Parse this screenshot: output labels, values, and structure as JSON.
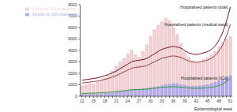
{
  "chart_data": {
    "type": "bar",
    "x_label": "Epidemiological week",
    "categories": [
      "12",
      null,
      null,
      "15",
      null,
      null,
      "18",
      null,
      null,
      "21",
      null,
      null,
      "24",
      null,
      null,
      "27",
      null,
      null,
      "30",
      null,
      null,
      "33",
      null,
      null,
      "36",
      null,
      null,
      "39",
      null,
      null,
      "42",
      null,
      null,
      "45",
      null,
      null,
      "48",
      null,
      null,
      "51"
    ],
    "ylim": [
      0,
      8000
    ],
    "yticks": [
      0,
      1000,
      2000,
      3000,
      4000,
      5000,
      6000,
      7000,
      8000
    ],
    "grid": false,
    "legend": "upper left",
    "series": [
      {
        "name": "Cases by 10k inhabitants",
        "type": "bar",
        "color": "#f6d3d7",
        "values": [
          900,
          1000,
          1100,
          1050,
          1200,
          1400,
          1600,
          1800,
          2200,
          2600,
          3000,
          3300,
          3700,
          4000,
          3600,
          3400,
          3900,
          4500,
          5200,
          5800,
          6200,
          6500,
          6800,
          6600,
          6000,
          5400,
          4600,
          3900,
          3400,
          3100,
          2900,
          3000,
          3200,
          3400,
          3600,
          3900,
          4300,
          4700,
          5000,
          5200
        ]
      },
      {
        "name": "Deaths by 1M inhabitants",
        "type": "bar",
        "color": "#b3aef0",
        "values": [
          150,
          150,
          160,
          170,
          180,
          200,
          230,
          260,
          300,
          350,
          400,
          450,
          500,
          560,
          600,
          620,
          640,
          680,
          720,
          780,
          850,
          920,
          1000,
          1050,
          1100,
          1080,
          1000,
          950,
          900,
          880,
          870,
          900,
          950,
          1000,
          1100,
          1200,
          1350,
          1500,
          1650,
          1800
        ]
      },
      {
        "name": "Hospitalised patients (total)",
        "type": "line",
        "color": "#6e0f1e",
        "values": [
          1400,
          1450,
          1500,
          1550,
          1600,
          1700,
          1800,
          1900,
          2050,
          2200,
          2400,
          2600,
          2800,
          3000,
          3100,
          3150,
          3200,
          3300,
          3500,
          3700,
          3900,
          4100,
          4200,
          4300,
          4350,
          4300,
          4200,
          4000,
          3800,
          3700,
          3650,
          3700,
          3800,
          3900,
          4100,
          4400,
          4900,
          5600,
          6600,
          7800
        ]
      },
      {
        "name": "Hospitalised patients (medical ward)",
        "type": "line",
        "color": "#9a3b3b",
        "values": [
          1150,
          1200,
          1240,
          1280,
          1320,
          1400,
          1480,
          1560,
          1680,
          1800,
          1960,
          2120,
          2280,
          2440,
          2520,
          2560,
          2600,
          2680,
          2840,
          3000,
          3160,
          3320,
          3400,
          3480,
          3520,
          3480,
          3400,
          3240,
          3080,
          3000,
          2960,
          3000,
          3080,
          3160,
          3320,
          3560,
          3960,
          4520,
          5320,
          6300
        ]
      },
      {
        "name": "Hospitalised patients (ICU)",
        "type": "line",
        "color": "#2f9a3a",
        "values": [
          250,
          250,
          260,
          270,
          280,
          300,
          320,
          340,
          370,
          400,
          440,
          480,
          520,
          560,
          580,
          590,
          600,
          620,
          660,
          700,
          740,
          780,
          800,
          820,
          830,
          820,
          800,
          760,
          720,
          700,
          690,
          700,
          720,
          740,
          780,
          840,
          940,
          1080,
          1300,
          1600
        ]
      }
    ]
  }
}
